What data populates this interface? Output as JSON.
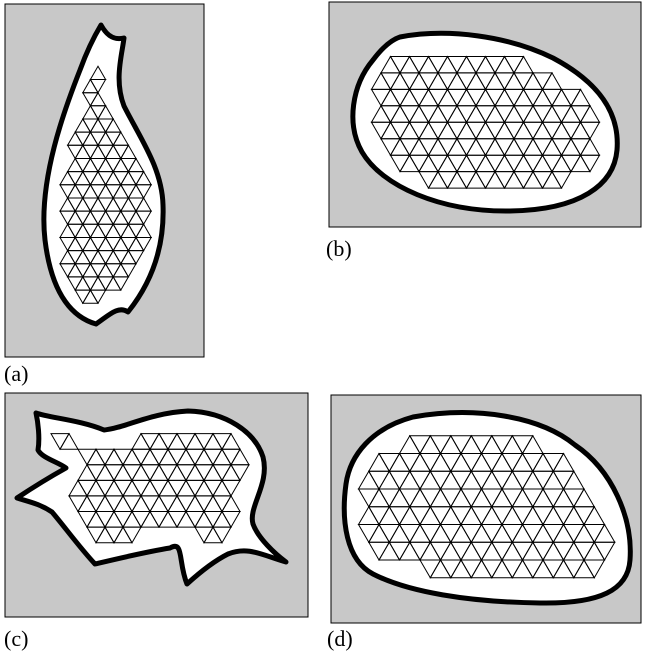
{
  "colors": {
    "panel_fill": "#c8c8c8",
    "panel_border": "#000000",
    "shape_fill": "#ffffff",
    "shape_border": "#000000",
    "mesh_line": "#000000"
  },
  "panels": [
    {
      "id": "a",
      "caption": "(a)"
    },
    {
      "id": "b",
      "caption": "(b)"
    },
    {
      "id": "c",
      "caption": "(c)"
    },
    {
      "id": "d",
      "caption": "(d)"
    }
  ]
}
